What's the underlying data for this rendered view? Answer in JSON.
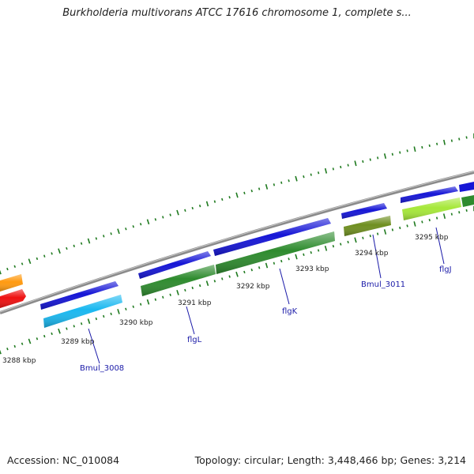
{
  "title": "Burkholderia multivorans ATCC 17616 chromosome 1, complete s...",
  "accession_text": "Accession: NC_010084",
  "summary_text": "Topology: circular; Length: 3,448,466 bp; Genes: 3,214",
  "colors": {
    "backbone": "#8a8a8a",
    "tick": "#1f7a1f",
    "label_line": "#1a1aa8",
    "cds_blue": "#1616d6",
    "gene_green": "#2e8b2e",
    "gene_cyan": "#1ab8f0",
    "gene_olive": "#6f8f20",
    "gene_lime": "#a6e83a",
    "gene_orange": "#ff9a10",
    "gene_red": "#ee1111"
  },
  "scale_labels": [
    {
      "text": "3288 kbp"
    },
    {
      "text": "3289 kbp"
    },
    {
      "text": "3290 kbp"
    },
    {
      "text": "3291 kbp"
    },
    {
      "text": "3292 kbp"
    },
    {
      "text": "3293 kbp"
    },
    {
      "text": "3294 kbp"
    },
    {
      "text": "3295 kbp"
    }
  ],
  "gene_labels": [
    {
      "text": "Bmul_3008"
    },
    {
      "text": "flgL"
    },
    {
      "text": "flgK"
    },
    {
      "text": "Bmul_3011"
    },
    {
      "text": "flgJ"
    }
  ]
}
